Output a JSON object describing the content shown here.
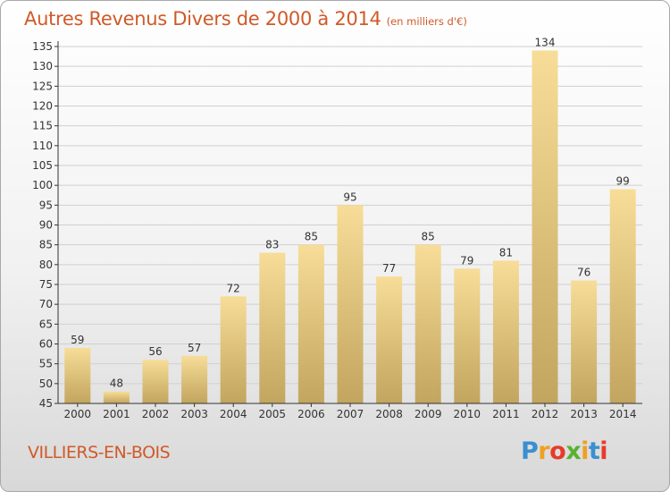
{
  "header": {
    "title": "Autres Revenus Divers de 2000 à 2014",
    "unit": "(en milliers d'€)"
  },
  "footer": {
    "commune": "VILLIERS-EN-BOIS",
    "logo_letters": [
      {
        "char": "P",
        "color": "#3a8fd0"
      },
      {
        "char": "r",
        "color": "#f0a020"
      },
      {
        "char": "o",
        "color": "#e83a2a"
      },
      {
        "char": "x",
        "color": "#5ab030"
      },
      {
        "char": "i",
        "color": "#f0a020"
      },
      {
        "char": "t",
        "color": "#3a8fd0"
      },
      {
        "char": "i",
        "color": "#e83a2a"
      }
    ]
  },
  "colors": {
    "bar_light": "#f7dd98",
    "bar_dark": "#c2a55e",
    "axis": "#333333",
    "grid": "#d0d0d0",
    "label": "#333333",
    "title": "#d05a28"
  },
  "chart_data": {
    "type": "bar",
    "categories": [
      "2000",
      "2001",
      "2002",
      "2003",
      "2004",
      "2005",
      "2006",
      "2007",
      "2008",
      "2009",
      "2010",
      "2011",
      "2012",
      "2013",
      "2014"
    ],
    "values": [
      59,
      48,
      56,
      57,
      72,
      83,
      85,
      95,
      77,
      85,
      79,
      81,
      134,
      76,
      99
    ],
    "title": "Autres Revenus Divers de 2000 à 2014",
    "xlabel": "",
    "ylabel": "",
    "ylim": [
      45,
      135
    ],
    "yticks": [
      45,
      50,
      55,
      60,
      65,
      70,
      75,
      80,
      85,
      90,
      95,
      100,
      105,
      110,
      115,
      120,
      125,
      130,
      135
    ],
    "grid": true,
    "data_labels": true
  }
}
